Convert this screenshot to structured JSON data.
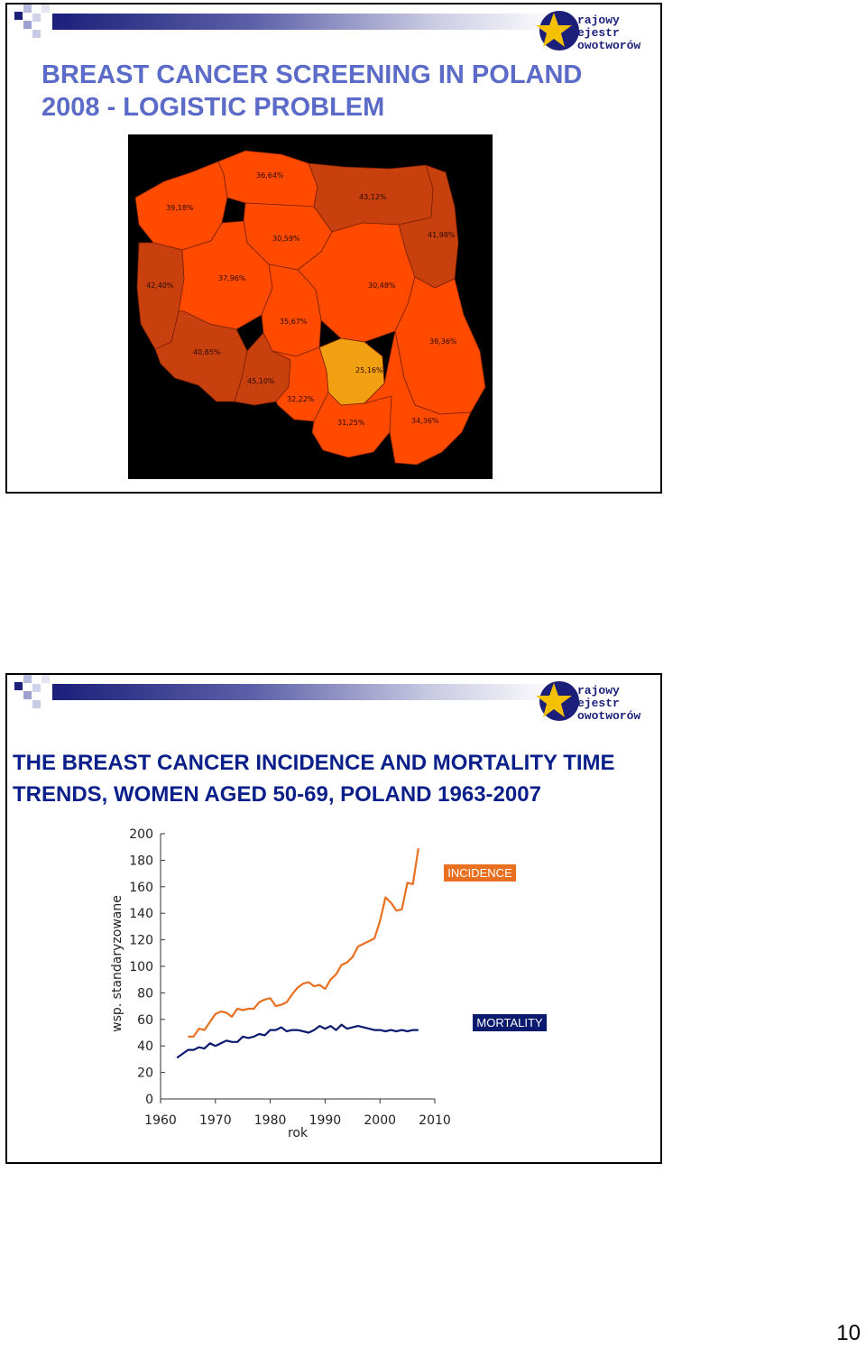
{
  "slide1": {
    "title_line1": "BREAST CANCER SCREENING IN POLAND",
    "title_line2": "2008 - LOGISTIC PROBLEM",
    "logo_lines": [
      "rajowy",
      "ejestr",
      "owotworów"
    ],
    "map": {
      "regions": [
        {
          "name": "zachodniopomorskie",
          "value": "39,18%",
          "color": "#ff4a00"
        },
        {
          "name": "pomorskie",
          "value": "36,64%",
          "color": "#ff4a00"
        },
        {
          "name": "warminsko-mazurskie",
          "value": "43,12%",
          "color": "#c7400e"
        },
        {
          "name": "podlaskie",
          "value": "41,98%",
          "color": "#c7400e"
        },
        {
          "name": "kujawsko-pomorskie",
          "value": "30,59%",
          "color": "#ff4a00"
        },
        {
          "name": "lubuskie",
          "value": "42,40%",
          "color": "#c7400e"
        },
        {
          "name": "wielkopolskie",
          "value": "37,96%",
          "color": "#ff4a00"
        },
        {
          "name": "mazowieckie",
          "value": "30,48%",
          "color": "#ff4a00"
        },
        {
          "name": "lodzkie",
          "value": "35,67%",
          "color": "#ff4a00"
        },
        {
          "name": "lubelskie",
          "value": "38,36%",
          "color": "#ff4a00"
        },
        {
          "name": "dolnoslaskie",
          "value": "40,85%",
          "color": "#c7400e"
        },
        {
          "name": "opolskie",
          "value": "45,10%",
          "color": "#c7400e"
        },
        {
          "name": "swietokrzyskie",
          "value": "25,16%",
          "color": "#f0a010"
        },
        {
          "name": "slaskie",
          "value": "32,22%",
          "color": "#ff4a00"
        },
        {
          "name": "malopolskie",
          "value": "31,25%",
          "color": "#ff4a00"
        },
        {
          "name": "podkarpackie",
          "value": "34,36%",
          "color": "#ff4a00"
        }
      ]
    }
  },
  "slide2": {
    "title_line1": "THE BREAST CANCER INCIDENCE AND MORTALITY TIME",
    "title_line2": "TRENDS,  WOMEN AGED 50-69, POLAND 1963-2007",
    "logo_lines": [
      "rajowy",
      "ejestr",
      "owotworów"
    ]
  },
  "chart_data": {
    "type": "line",
    "title": "THE BREAST CANCER INCIDENCE AND MORTALITY TIME TRENDS,  WOMEN AGED 50-69, POLAND 1963-2007",
    "xlabel": "rok",
    "ylabel": "wsp. standaryzowane",
    "xlim": [
      1960,
      2010
    ],
    "ylim": [
      0,
      200
    ],
    "x_ticks": [
      1960,
      1970,
      1980,
      1990,
      2000,
      2010
    ],
    "y_ticks": [
      0,
      20,
      40,
      60,
      80,
      100,
      120,
      140,
      160,
      180,
      200
    ],
    "grid": false,
    "series": [
      {
        "name": "INCIDENCE",
        "color": "#e87020",
        "x": [
          1965,
          1966,
          1967,
          1968,
          1969,
          1970,
          1971,
          1972,
          1973,
          1974,
          1975,
          1976,
          1977,
          1978,
          1979,
          1980,
          1981,
          1982,
          1983,
          1984,
          1985,
          1986,
          1987,
          1988,
          1989,
          1990,
          1991,
          1992,
          1993,
          1994,
          1995,
          1996,
          1997,
          1998,
          1999,
          2000,
          2001,
          2002,
          2003,
          2004,
          2005,
          2006,
          2007
        ],
        "values": [
          47,
          47,
          53,
          52,
          58,
          64,
          66,
          65,
          62,
          68,
          67,
          68,
          68,
          73,
          75,
          76,
          70,
          71,
          73,
          79,
          84,
          87,
          88,
          85,
          86,
          83,
          90,
          94,
          101,
          103,
          107,
          115,
          117,
          119,
          121,
          134,
          152,
          148,
          142,
          143,
          163,
          162,
          189
        ]
      },
      {
        "name": "MORTALITY",
        "color": "#0a1a6e",
        "x": [
          1963,
          1964,
          1965,
          1966,
          1967,
          1968,
          1969,
          1970,
          1971,
          1972,
          1973,
          1974,
          1975,
          1976,
          1977,
          1978,
          1979,
          1980,
          1981,
          1982,
          1983,
          1984,
          1985,
          1986,
          1987,
          1988,
          1989,
          1990,
          1991,
          1992,
          1993,
          1994,
          1995,
          1996,
          1997,
          1998,
          1999,
          2000,
          2001,
          2002,
          2003,
          2004,
          2005,
          2006,
          2007
        ],
        "values": [
          31,
          34,
          37,
          37,
          39,
          38,
          42,
          40,
          42,
          44,
          43,
          43,
          47,
          46,
          47,
          49,
          48,
          52,
          52,
          54,
          51,
          52,
          52,
          51,
          50,
          52,
          55,
          53,
          55,
          52,
          56,
          53,
          54,
          55,
          54,
          53,
          52,
          52,
          51,
          52,
          51,
          52,
          51,
          52,
          52
        ]
      }
    ],
    "legend": [
      {
        "label": "INCIDENCE",
        "bg": "#e87020",
        "fg": "#ffffff",
        "placement": "upper-right"
      },
      {
        "label": "MORTALITY",
        "bg": "#0a1a6e",
        "fg": "#ffffff",
        "placement": "right"
      }
    ]
  },
  "page": {
    "number": "10"
  }
}
